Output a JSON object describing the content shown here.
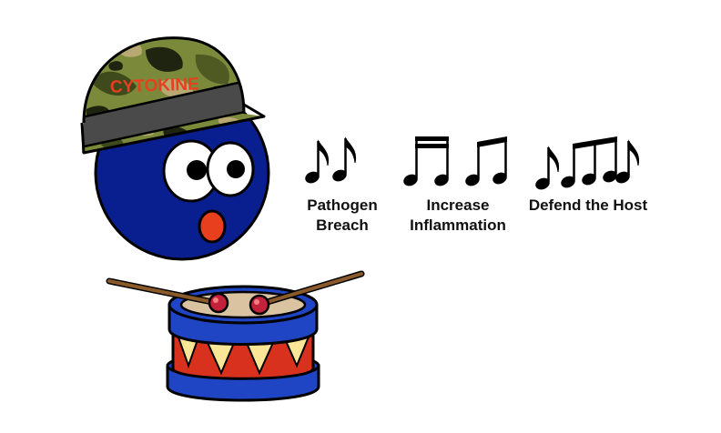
{
  "helmet_label": "CYTOKINE",
  "rhythm_groups": [
    {
      "notes": "two eighth notes",
      "caption_lines": [
        "Pathogen",
        "Breach"
      ]
    },
    {
      "notes": "four sixteenth notes + two beamed eighth notes",
      "caption_lines": [
        "Increase",
        "Inflammation"
      ]
    },
    {
      "notes": "eighth note, three beamed eighth notes, eighth note",
      "caption_lines": [
        "Defend the Host"
      ]
    }
  ],
  "colors": {
    "cell_body": "#0a1f8f",
    "mouth": "#e8401e",
    "helmet_camo_base": "#7a8a3a",
    "helmet_band": "#4a4a4a",
    "label_text": "#e8401e",
    "drum_shell_blue": "#1f45c4",
    "drum_triangle_red": "#d8321e",
    "drum_triangle_yellow": "#fae696",
    "drum_head": "#d9c3a0",
    "drumstick": "#8a5a2b",
    "stick_tip": "#c4223a"
  },
  "icons": [
    "cytokine-cell",
    "army-helmet",
    "snare-drum",
    "drumstick",
    "music-note"
  ]
}
